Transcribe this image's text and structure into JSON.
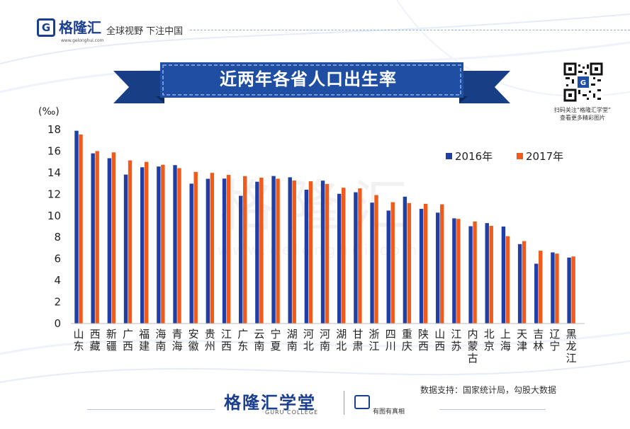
{
  "header": {
    "logo_mark": "G",
    "logo_name": "格隆汇",
    "logo_url": "www.gelonghui.com",
    "slogan": "全球视野 下注中国"
  },
  "title": "近两年各省人口出生率",
  "qr_caption": [
    "扫码关注“格隆汇学堂”",
    "查看更多精彩图片"
  ],
  "watermark": {
    "cn": "格隆汇",
    "en": "www.gelonghui.com"
  },
  "source": "数据支持：国家统计局，勾股大数据",
  "footer": {
    "brand": "格隆汇学堂",
    "sub": "GURU COLLEGE",
    "tag": "有图有真相"
  },
  "colors": {
    "series_2016": "#1f3fa6",
    "series_2017": "#f05a1a",
    "title_ribbon": "#1f4ea3"
  },
  "chart_data": {
    "type": "bar",
    "title": "近两年各省人口出生率",
    "ylabel": "(‰)",
    "ylim": [
      0,
      18
    ],
    "yticks": [
      0,
      2,
      4,
      6,
      8,
      10,
      12,
      14,
      16,
      18
    ],
    "legend_position": "top-right",
    "categories": [
      "山东",
      "西藏",
      "新疆",
      "广西",
      "福建",
      "海南",
      "青海",
      "安徽",
      "贵州",
      "江西",
      "广东",
      "云南",
      "宁夏",
      "湖南",
      "河北",
      "河南",
      "湖北",
      "甘肃",
      "浙江",
      "四川",
      "重庆",
      "陕西",
      "山西",
      "江苏",
      "内蒙古",
      "北京",
      "上海",
      "天津",
      "吉林",
      "辽宁",
      "黑龙江"
    ],
    "series": [
      {
        "name": "2016年",
        "values": [
          17.89,
          15.79,
          15.34,
          13.82,
          14.5,
          14.57,
          14.7,
          12.98,
          13.43,
          13.45,
          11.85,
          13.16,
          13.69,
          13.57,
          12.42,
          13.26,
          12.04,
          12.18,
          11.22,
          10.48,
          11.77,
          10.64,
          10.29,
          9.76,
          9.03,
          9.32,
          9.0,
          7.37,
          5.55,
          6.6,
          6.12
        ]
      },
      {
        "name": "2017年",
        "values": [
          17.54,
          16.0,
          15.88,
          15.14,
          15.0,
          14.73,
          14.42,
          14.07,
          13.98,
          13.79,
          13.68,
          13.53,
          13.44,
          13.27,
          13.2,
          12.95,
          12.6,
          12.54,
          11.92,
          11.26,
          11.18,
          11.11,
          11.06,
          9.71,
          9.47,
          9.06,
          8.1,
          7.65,
          6.76,
          6.49,
          6.22
        ]
      }
    ]
  }
}
